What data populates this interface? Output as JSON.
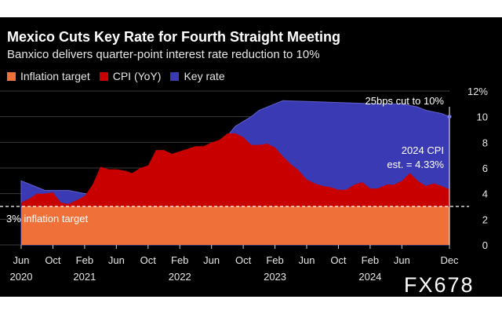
{
  "header": {
    "title": "Mexico Cuts Key Rate for Fourth Straight Meeting",
    "subtitle": "Banxico delivers quarter-point interest rate reduction to 10%"
  },
  "watermark": "FX678",
  "colors": {
    "inflation_target": "#f0703a",
    "cpi": "#c80000",
    "key_rate": "#3a3ab4",
    "background": "#000000"
  },
  "chart_data": {
    "type": "area",
    "x_start": "2020-06",
    "x_end": "2024-12",
    "ylim": [
      0,
      12
    ],
    "yticks": [
      "0",
      "2",
      "4",
      "6",
      "8",
      "10",
      "12%"
    ],
    "grid": true,
    "xtick_labels": [
      {
        "date": "2020-06",
        "month": "Jun",
        "year": "2020"
      },
      {
        "date": "2020-10",
        "month": "Oct",
        "year": ""
      },
      {
        "date": "2021-02",
        "month": "Feb",
        "year": "2021"
      },
      {
        "date": "2021-06",
        "month": "Jun",
        "year": ""
      },
      {
        "date": "2021-10",
        "month": "Oct",
        "year": ""
      },
      {
        "date": "2022-02",
        "month": "Feb",
        "year": "2022"
      },
      {
        "date": "2022-06",
        "month": "Jun",
        "year": ""
      },
      {
        "date": "2022-10",
        "month": "Oct",
        "year": ""
      },
      {
        "date": "2023-02",
        "month": "Feb",
        "year": "2023"
      },
      {
        "date": "2023-06",
        "month": "Jun",
        "year": ""
      },
      {
        "date": "2023-10",
        "month": "Oct",
        "year": ""
      },
      {
        "date": "2024-02",
        "month": "Feb",
        "year": "2024"
      },
      {
        "date": "2024-06",
        "month": "Jun",
        "year": ""
      },
      {
        "date": "2024-12",
        "month": "Dec",
        "year": ""
      }
    ],
    "legend": [
      "Inflation target",
      "CPI (YoY)",
      "Key rate"
    ],
    "series": [
      {
        "name": "Key rate",
        "points": [
          [
            "2020-06",
            5.0
          ],
          [
            "2020-08",
            4.5
          ],
          [
            "2020-09",
            4.25
          ],
          [
            "2020-12",
            4.25
          ],
          [
            "2021-02",
            4.0
          ],
          [
            "2021-03",
            4.0
          ],
          [
            "2021-06",
            4.25
          ],
          [
            "2021-08",
            4.5
          ],
          [
            "2021-09",
            4.75
          ],
          [
            "2021-11",
            5.0
          ],
          [
            "2021-12",
            5.5
          ],
          [
            "2022-02",
            6.0
          ],
          [
            "2022-03",
            6.5
          ],
          [
            "2022-05",
            7.0
          ],
          [
            "2022-06",
            7.75
          ],
          [
            "2022-08",
            8.5
          ],
          [
            "2022-09",
            9.25
          ],
          [
            "2022-11",
            10.0
          ],
          [
            "2022-12",
            10.5
          ],
          [
            "2023-02",
            11.0
          ],
          [
            "2023-03",
            11.25
          ],
          [
            "2024-03",
            11.0
          ],
          [
            "2024-06",
            11.0
          ],
          [
            "2024-08",
            10.75
          ],
          [
            "2024-09",
            10.5
          ],
          [
            "2024-11",
            10.25
          ],
          [
            "2024-12",
            10.0
          ]
        ]
      },
      {
        "name": "CPI (YoY)",
        "points": [
          [
            "2020-06",
            3.3
          ],
          [
            "2020-07",
            3.6
          ],
          [
            "2020-08",
            4.0
          ],
          [
            "2020-09",
            4.0
          ],
          [
            "2020-10",
            4.1
          ],
          [
            "2020-11",
            3.3
          ],
          [
            "2020-12",
            3.2
          ],
          [
            "2021-01",
            3.5
          ],
          [
            "2021-02",
            3.8
          ],
          [
            "2021-03",
            4.7
          ],
          [
            "2021-04",
            6.1
          ],
          [
            "2021-05",
            5.9
          ],
          [
            "2021-06",
            5.9
          ],
          [
            "2021-07",
            5.8
          ],
          [
            "2021-08",
            5.6
          ],
          [
            "2021-09",
            6.0
          ],
          [
            "2021-10",
            6.2
          ],
          [
            "2021-11",
            7.4
          ],
          [
            "2021-12",
            7.4
          ],
          [
            "2022-01",
            7.1
          ],
          [
            "2022-02",
            7.3
          ],
          [
            "2022-03",
            7.5
          ],
          [
            "2022-04",
            7.7
          ],
          [
            "2022-05",
            7.7
          ],
          [
            "2022-06",
            8.0
          ],
          [
            "2022-07",
            8.2
          ],
          [
            "2022-08",
            8.7
          ],
          [
            "2022-09",
            8.7
          ],
          [
            "2022-10",
            8.4
          ],
          [
            "2022-11",
            7.8
          ],
          [
            "2022-12",
            7.8
          ],
          [
            "2023-01",
            7.9
          ],
          [
            "2023-02",
            7.6
          ],
          [
            "2023-03",
            6.9
          ],
          [
            "2023-04",
            6.3
          ],
          [
            "2023-05",
            5.8
          ],
          [
            "2023-06",
            5.1
          ],
          [
            "2023-07",
            4.8
          ],
          [
            "2023-08",
            4.6
          ],
          [
            "2023-09",
            4.5
          ],
          [
            "2023-10",
            4.3
          ],
          [
            "2023-11",
            4.3
          ],
          [
            "2023-12",
            4.7
          ],
          [
            "2024-01",
            4.9
          ],
          [
            "2024-02",
            4.4
          ],
          [
            "2024-03",
            4.4
          ],
          [
            "2024-04",
            4.7
          ],
          [
            "2024-05",
            4.7
          ],
          [
            "2024-06",
            5.0
          ],
          [
            "2024-07",
            5.6
          ],
          [
            "2024-08",
            5.0
          ],
          [
            "2024-09",
            4.6
          ],
          [
            "2024-10",
            4.8
          ],
          [
            "2024-11",
            4.6
          ],
          [
            "2024-12",
            4.33
          ]
        ]
      },
      {
        "name": "Inflation target",
        "value": 3
      }
    ],
    "annotations": [
      {
        "id": "cut",
        "text": "25bps cut to 10%",
        "date": "2024-12"
      },
      {
        "id": "cpi_est_line1",
        "text": "2024 CPI"
      },
      {
        "id": "cpi_est_line2",
        "text": "est. = 4.33%"
      },
      {
        "id": "target",
        "text": "3% inflation target",
        "value": 3
      }
    ]
  }
}
